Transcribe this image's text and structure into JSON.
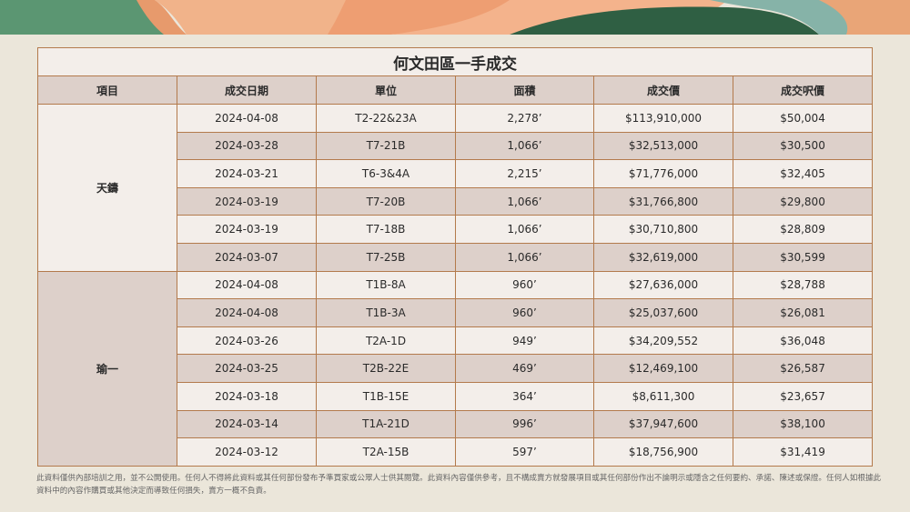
{
  "title": "何文田區一手成交",
  "columns": [
    "項目",
    "成交日期",
    "單位",
    "面積",
    "成交價",
    "成交呎價"
  ],
  "groups": [
    {
      "project": "天鑄",
      "rows": [
        [
          "2024-04-08",
          "T2-22&23A",
          "2,278’",
          "$113,910,000",
          "$50,004"
        ],
        [
          "2024-03-28",
          "T7-21B",
          "1,066’",
          "$32,513,000",
          "$30,500"
        ],
        [
          "2024-03-21",
          "T6-3&4A",
          "2,215’",
          "$71,776,000",
          "$32,405"
        ],
        [
          "2024-03-19",
          "T7-20B",
          "1,066’",
          "$31,766,800",
          "$29,800"
        ],
        [
          "2024-03-19",
          "T7-18B",
          "1,066’",
          "$30,710,800",
          "$28,809"
        ],
        [
          "2024-03-07",
          "T7-25B",
          "1,066’",
          "$32,619,000",
          "$30,599"
        ]
      ]
    },
    {
      "project": "瑜一",
      "rows": [
        [
          "2024-04-08",
          "T1B-8A",
          "960’",
          "$27,636,000",
          "$28,788"
        ],
        [
          "2024-04-08",
          "T1B-3A",
          "960’",
          "$25,037,600",
          "$26,081"
        ],
        [
          "2024-03-26",
          "T2A-1D",
          "949’",
          "$34,209,552",
          "$36,048"
        ],
        [
          "2024-03-25",
          "T2B-22E",
          "469’",
          "$12,469,100",
          "$26,587"
        ],
        [
          "2024-03-18",
          "T1B-15E",
          "364’",
          "$8,611,300",
          "$23,657"
        ],
        [
          "2024-03-14",
          "T1A-21D",
          "996’",
          "$37,947,600",
          "$38,100"
        ],
        [
          "2024-03-12",
          "T2A-15B",
          "597’",
          "$18,756,900",
          "$31,419"
        ]
      ]
    }
  ],
  "footnote": "此資料僅供內部培訓之用，並不公開使用。任何人不得將此資料或其任何部份發布予準買家或公眾人士供其閱覽。此資料內容僅供參考，且不構成賣方就發展項目或其任何部份作出不論明示或隱含之任何要約、承諾、陳述或保證。任何人如根據此資料中的內容作購買或其他決定而導致任何損失，賣方一概不負責。",
  "colors": {
    "background": "#ebe6da",
    "row_light": "#f3eeea",
    "row_dark": "#ddd0ca",
    "border": "#a0663a"
  }
}
